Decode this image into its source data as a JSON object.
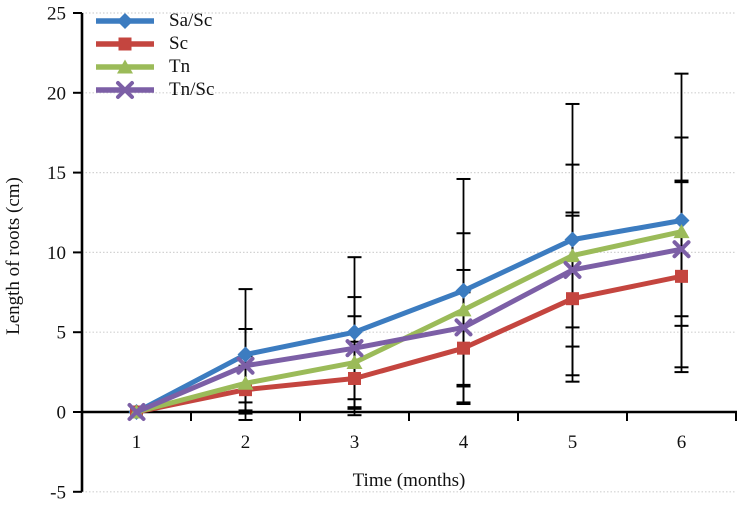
{
  "chart_data": {
    "type": "line",
    "title": "",
    "xlabel": "Time (months)",
    "ylabel": "Length of roots (cm)",
    "x_tick_labels": [
      "1",
      "2",
      "3",
      "4",
      "5",
      "6"
    ],
    "x": [
      1,
      2,
      3,
      4,
      5,
      6
    ],
    "yticks": [
      -5,
      0,
      5,
      10,
      15,
      20,
      25
    ],
    "ylim": [
      -5,
      25
    ],
    "grid": true,
    "gridline_color": "#d2d2d2",
    "axis_color": "#000000",
    "error_bar_color": "#000000",
    "legend_position": "top-left-inside",
    "series": [
      {
        "name": "Sa/Sc",
        "color": "#3c7cc0",
        "marker": "diamond",
        "values": [
          0,
          3.6,
          5.0,
          7.6,
          10.8,
          12.0
        ],
        "errors": [
          0,
          4.1,
          4.7,
          7.0,
          8.5,
          9.2
        ]
      },
      {
        "name": "Sc",
        "color": "#c4453f",
        "marker": "square",
        "values": [
          0,
          1.4,
          2.1,
          4.0,
          7.1,
          8.5
        ],
        "errors": [
          0,
          1.5,
          2.3,
          3.5,
          5.2,
          6.0
        ]
      },
      {
        "name": "Tn",
        "color": "#9bbb59",
        "marker": "triangle",
        "values": [
          0,
          1.8,
          3.1,
          6.4,
          9.8,
          11.3
        ],
        "errors": [
          0,
          1.7,
          2.9,
          4.8,
          5.7,
          5.9
        ]
      },
      {
        "name": "Tn/Sc",
        "color": "#7c5fa6",
        "marker": "x",
        "values": [
          0,
          2.9,
          4.0,
          5.3,
          8.9,
          10.2
        ],
        "errors": [
          0,
          2.3,
          3.2,
          3.6,
          3.6,
          4.2
        ]
      }
    ]
  }
}
